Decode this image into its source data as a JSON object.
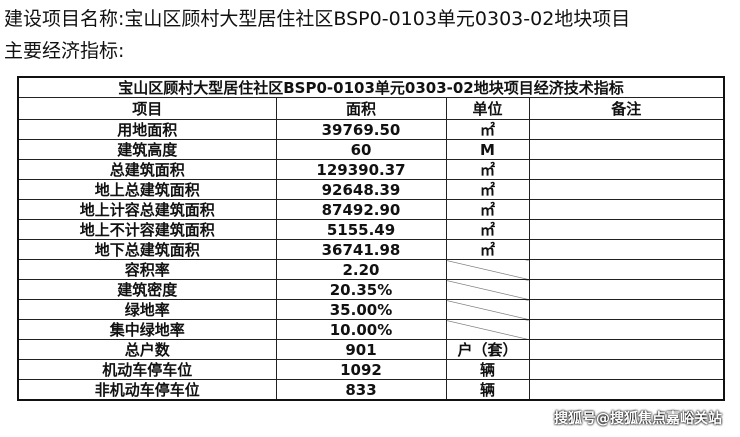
{
  "heading": {
    "project_name": "建设项目名称:宝山区顾村大型居住社区BSP0-0103单元0303-02地块项目",
    "indicators": "主要经济指标:"
  },
  "table": {
    "title": "宝山区顾村大型居住社区BSP0-0103单元0303-02地块项目经济技术指标",
    "headers": [
      "项目",
      "面积",
      "单位",
      "备注"
    ],
    "rows": [
      {
        "item": "用地面积",
        "value": "39769.50",
        "unit": "㎡",
        "note": ""
      },
      {
        "item": "建筑高度",
        "value": "60",
        "unit": "M",
        "note": ""
      },
      {
        "item": "总建筑面积",
        "value": "129390.37",
        "unit": "㎡",
        "note": ""
      },
      {
        "item": "地上总建筑面积",
        "value": "92648.39",
        "unit": "㎡",
        "note": ""
      },
      {
        "item": "地上计容总建筑面积",
        "value": "87492.90",
        "unit": "㎡",
        "note": ""
      },
      {
        "item": "地上不计容建筑面积",
        "value": "5155.49",
        "unit": "㎡",
        "note": ""
      },
      {
        "item": "地下总建筑面积",
        "value": "36741.98",
        "unit": "㎡",
        "note": ""
      },
      {
        "item": "容积率",
        "value": "2.20",
        "unit": "",
        "note": ""
      },
      {
        "item": "建筑密度",
        "value": "20.35%",
        "unit": "",
        "note": ""
      },
      {
        "item": "绿地率",
        "value": "35.00%",
        "unit": "",
        "note": ""
      },
      {
        "item": "集中绿地率",
        "value": "10.00%",
        "unit": "",
        "note": ""
      },
      {
        "item": "总户数",
        "value": "901",
        "unit": "户（套）",
        "note": ""
      },
      {
        "item": "机动车停车位",
        "value": "1092",
        "unit": "辆",
        "note": ""
      },
      {
        "item": "非机动车停车位",
        "value": "833",
        "unit": "辆",
        "note": ""
      }
    ]
  },
  "watermark": "搜狐号@搜狐焦点嘉峪关站"
}
